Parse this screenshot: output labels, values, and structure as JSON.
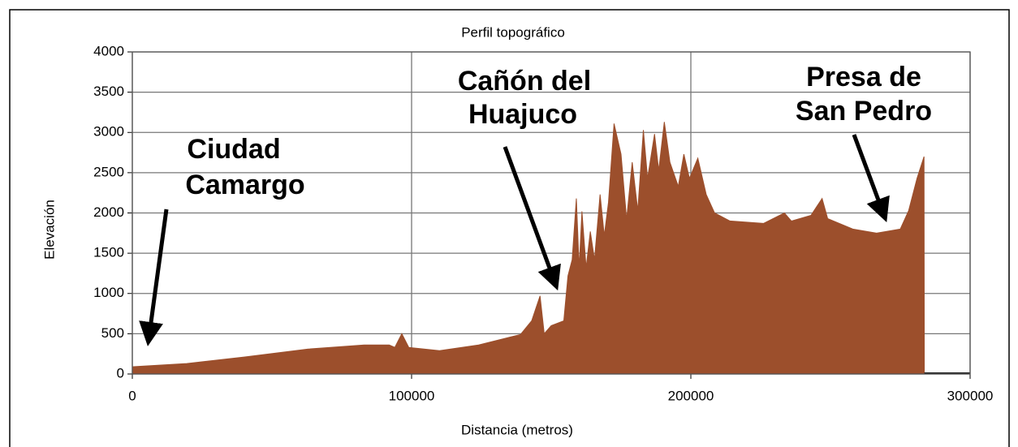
{
  "chart_data": {
    "type": "area",
    "title": "Perfil topográfico",
    "x_label": "Distancia (metros)",
    "y_label": "Elevación",
    "color": "#9c4f2c",
    "xlim": [
      0,
      300000
    ],
    "ylim": [
      0,
      4000
    ],
    "xticks": [
      0,
      100000,
      200000,
      300000
    ],
    "yticks": [
      0,
      500,
      1000,
      1500,
      2000,
      2500,
      3000,
      3500,
      4000
    ],
    "grid": true,
    "x": [
      0,
      19500,
      40000,
      63000,
      83000,
      92000,
      94000,
      96500,
      99000,
      110000,
      124000,
      139000,
      143000,
      146000,
      147500,
      150000,
      154500,
      156000,
      157500,
      159000,
      160000,
      161000,
      162500,
      164000,
      165500,
      167500,
      169000,
      170500,
      172500,
      175000,
      177000,
      179000,
      181000,
      183000,
      184500,
      187000,
      188500,
      190500,
      192500,
      195500,
      197500,
      199500,
      202500,
      205500,
      208500,
      214000,
      226000,
      233500,
      236000,
      243000,
      247000,
      249000,
      258000,
      266500,
      275000,
      278000,
      281000,
      283500,
      283600,
      300000
    ],
    "values": [
      90,
      130,
      210,
      310,
      360,
      360,
      330,
      500,
      330,
      290,
      360,
      490,
      660,
      970,
      500,
      600,
      660,
      1220,
      1420,
      2180,
      1320,
      2020,
      1320,
      1770,
      1420,
      2230,
      1720,
      2130,
      3110,
      2730,
      1920,
      2630,
      2030,
      3030,
      2430,
      2980,
      2530,
      3130,
      2630,
      2330,
      2730,
      2430,
      2680,
      2230,
      2000,
      1900,
      1870,
      2000,
      1900,
      1970,
      2180,
      1930,
      1800,
      1750,
      1800,
      2030,
      2430,
      2700,
      0,
      0
    ],
    "annotations": [
      {
        "lines": [
          "Ciudad",
          "Camargo"
        ]
      },
      {
        "lines": [
          "Cañón del",
          "Huajuco"
        ]
      },
      {
        "lines": [
          "Presa de",
          "San Pedro"
        ]
      }
    ]
  }
}
